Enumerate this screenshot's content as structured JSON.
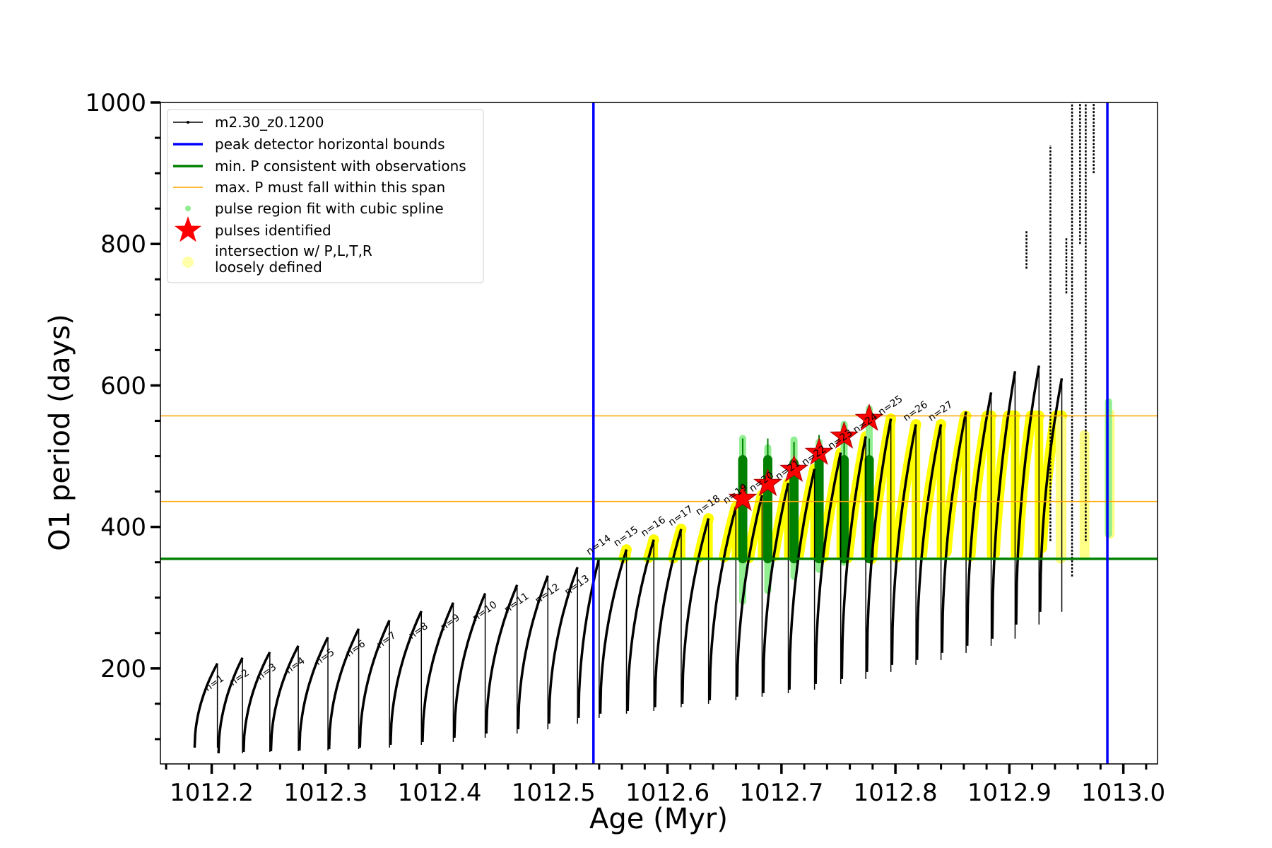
{
  "chart_data": {
    "type": "scatter",
    "xlabel": "Age (Myr)",
    "ylabel": "O1 period (days)",
    "xlim": [
      1012.155,
      1013.03
    ],
    "ylim": [
      65,
      1000
    ],
    "x_ticks": [
      "1012.2",
      "1012.3",
      "1012.4",
      "1012.5",
      "1012.6",
      "1012.7",
      "1012.8",
      "1012.9",
      "1013.0"
    ],
    "y_ticks": [
      "200",
      "400",
      "600",
      "800",
      "1000"
    ],
    "grid": false,
    "legend_position": "upper-left",
    "legend": [
      {
        "label": "m2.30_z0.1200",
        "style": "black-line-dots",
        "color": "#000000"
      },
      {
        "label": "peak detector horizontal bounds",
        "style": "line",
        "color": "#0000ff"
      },
      {
        "label": "min. P consistent with observations",
        "style": "line",
        "color": "#008000"
      },
      {
        "label": "max. P must fall within this span",
        "style": "thin-line",
        "color": "#ffa500"
      },
      {
        "label": "pulse region fit with cubic spline",
        "style": "dot",
        "color": "#90ee90"
      },
      {
        "label": "pulses identified",
        "style": "star",
        "color": "#ff0000"
      },
      {
        "label_lines": [
          "intersection w/ P,L,T,R",
          "loosely defined"
        ],
        "style": "big-dot",
        "color": "#ffffaa"
      }
    ],
    "vertical_lines": [
      {
        "x": 1012.535,
        "color": "#0000ff",
        "name": "peak detector horizontal bounds"
      },
      {
        "x": 1012.986,
        "color": "#0000ff",
        "name": "peak detector horizontal bounds"
      }
    ],
    "horizontal_lines": [
      {
        "y": 355,
        "color": "#008000",
        "name": "min. P consistent with observations"
      },
      {
        "y": 436,
        "color": "#ffa500",
        "name": "max. P must fall within this span"
      },
      {
        "y": 557,
        "color": "#ffa500",
        "name": "max. P must fall within this span"
      }
    ],
    "series_model": {
      "name": "m2.30_z0.1200",
      "color": "#000000",
      "pulses": [
        {
          "start": 1012.185,
          "end": 1012.205,
          "min": 88,
          "max": 207
        },
        {
          "start": 1012.206,
          "end": 1012.227,
          "min": 80,
          "max": 215
        },
        {
          "start": 1012.228,
          "end": 1012.251,
          "min": 82,
          "max": 223
        },
        {
          "start": 1012.252,
          "end": 1012.276,
          "min": 83,
          "max": 232
        },
        {
          "start": 1012.277,
          "end": 1012.302,
          "min": 84,
          "max": 244
        },
        {
          "start": 1012.303,
          "end": 1012.329,
          "min": 86,
          "max": 256
        },
        {
          "start": 1012.33,
          "end": 1012.356,
          "min": 88,
          "max": 268
        },
        {
          "start": 1012.357,
          "end": 1012.384,
          "min": 92,
          "max": 281
        },
        {
          "start": 1012.385,
          "end": 1012.412,
          "min": 96,
          "max": 293
        },
        {
          "start": 1012.413,
          "end": 1012.44,
          "min": 102,
          "max": 306
        },
        {
          "start": 1012.441,
          "end": 1012.468,
          "min": 108,
          "max": 318
        },
        {
          "start": 1012.469,
          "end": 1012.495,
          "min": 114,
          "max": 331
        },
        {
          "start": 1012.496,
          "end": 1012.521,
          "min": 122,
          "max": 343
        },
        {
          "start": 1012.522,
          "end": 1012.54,
          "min": 130,
          "max": 356
        },
        {
          "start": 1012.541,
          "end": 1012.564,
          "min": 136,
          "max": 368
        },
        {
          "start": 1012.565,
          "end": 1012.588,
          "min": 140,
          "max": 382
        },
        {
          "start": 1012.589,
          "end": 1012.612,
          "min": 145,
          "max": 397
        },
        {
          "start": 1012.613,
          "end": 1012.636,
          "min": 150,
          "max": 412
        },
        {
          "start": 1012.637,
          "end": 1012.66,
          "min": 155,
          "max": 428
        },
        {
          "start": 1012.661,
          "end": 1012.683,
          "min": 160,
          "max": 445
        },
        {
          "start": 1012.684,
          "end": 1012.706,
          "min": 165,
          "max": 462
        },
        {
          "start": 1012.707,
          "end": 1012.729,
          "min": 170,
          "max": 482
        },
        {
          "start": 1012.73,
          "end": 1012.752,
          "min": 178,
          "max": 505
        },
        {
          "start": 1012.753,
          "end": 1012.774,
          "min": 185,
          "max": 528
        },
        {
          "start": 1012.775,
          "end": 1012.796,
          "min": 195,
          "max": 553
        },
        {
          "start": 1012.797,
          "end": 1012.818,
          "min": 205,
          "max": 545
        },
        {
          "start": 1012.819,
          "end": 1012.84,
          "min": 212,
          "max": 545
        },
        {
          "start": 1012.841,
          "end": 1012.862,
          "min": 222,
          "max": 563
        },
        {
          "start": 1012.863,
          "end": 1012.884,
          "min": 232,
          "max": 590
        },
        {
          "start": 1012.885,
          "end": 1012.905,
          "min": 242,
          "max": 620
        },
        {
          "start": 1012.906,
          "end": 1012.926,
          "min": 262,
          "max": 628
        },
        {
          "start": 1012.927,
          "end": 1012.946,
          "min": 280,
          "max": 610
        }
      ],
      "extra_segments": [
        {
          "x": 1012.915,
          "y0": 765,
          "y1": 820
        },
        {
          "x": 1012.936,
          "y0": 380,
          "y1": 940
        },
        {
          "x": 1012.95,
          "y0": 730,
          "y1": 810
        },
        {
          "x": 1012.955,
          "y0": 330,
          "y1": 1000
        },
        {
          "x": 1012.962,
          "y0": 800,
          "y1": 1000
        },
        {
          "x": 1012.967,
          "y0": 380,
          "y1": 1000
        },
        {
          "x": 1012.974,
          "y0": 900,
          "y1": 1000
        }
      ]
    },
    "series_fit": {
      "name": "pulse region fit with cubic spline",
      "color": "#90ee90",
      "segments": [
        {
          "x": 1012.666,
          "y0": 295,
          "y1": 525
        },
        {
          "x": 1012.688,
          "y0": 310,
          "y1": 512
        },
        {
          "x": 1012.711,
          "y0": 330,
          "y1": 523
        },
        {
          "x": 1012.733,
          "y0": 340,
          "y1": 520
        },
        {
          "x": 1012.755,
          "y0": 350,
          "y1": 545
        },
        {
          "x": 1012.777,
          "y0": 355,
          "y1": 567
        },
        {
          "x": 1012.987,
          "y0": 390,
          "y1": 577
        }
      ]
    },
    "series_green": {
      "name": "min. P consistent with observations",
      "color": "#008000",
      "segments": [
        {
          "x": 1012.666,
          "y0": 355,
          "y1": 495
        },
        {
          "x": 1012.688,
          "y0": 355,
          "y1": 495
        },
        {
          "x": 1012.711,
          "y0": 355,
          "y1": 490
        },
        {
          "x": 1012.733,
          "y0": 355,
          "y1": 500
        },
        {
          "x": 1012.755,
          "y0": 355,
          "y1": 495
        },
        {
          "x": 1012.777,
          "y0": 355,
          "y1": 495
        }
      ]
    },
    "series_intersection": {
      "name": "intersection w/ P,L,T,R loosely defined",
      "color": "#ffff00"
    },
    "pulses_identified": [
      {
        "x": 1012.666,
        "y": 440
      },
      {
        "x": 1012.688,
        "y": 461
      },
      {
        "x": 1012.711,
        "y": 481
      },
      {
        "x": 1012.733,
        "y": 505
      },
      {
        "x": 1012.755,
        "y": 528
      },
      {
        "x": 1012.777,
        "y": 553
      }
    ],
    "pulse_labels": [
      "n=1",
      "n=2",
      "n=3",
      "n=4",
      "n=5",
      "n=6",
      "n=7",
      "n=8",
      "n=9",
      "n=10",
      "n=11",
      "n=12",
      "n=13",
      "n=14",
      "n=15",
      "n=16",
      "n=17",
      "n=18",
      "n=19",
      "n=20",
      "n=21",
      "n=22",
      "n=23",
      "n=24",
      "n=25",
      "n=26",
      "n=27"
    ]
  }
}
